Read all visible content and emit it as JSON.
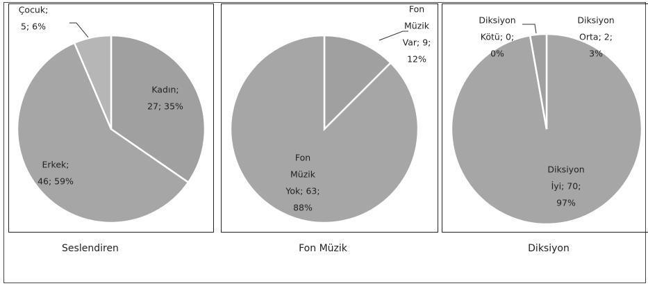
{
  "chart_data": [
    {
      "type": "pie",
      "title": "Seslendiren",
      "values": [
        27,
        46,
        5
      ],
      "colors": [
        "#a0a0a0",
        "#a6a6a6",
        "#b6b6b6"
      ],
      "value_labels": [
        [
          "Kadın;",
          "27; 35%"
        ],
        [
          "Erkek;",
          "46; 59%"
        ],
        [
          "Çocuk;",
          "5; 6%"
        ]
      ]
    },
    {
      "type": "pie",
      "title": "Fon Müzik",
      "values": [
        9,
        63
      ],
      "colors": [
        "#a0a0a0",
        "#a6a6a6"
      ],
      "value_labels": [
        [
          "Fon",
          "Müzik",
          "Var; 9;",
          "12%"
        ],
        [
          "Fon",
          "Müzik",
          "Yok; 63;",
          "88%"
        ]
      ]
    },
    {
      "type": "pie",
      "title": "Diksiyon",
      "values": [
        70,
        0,
        2
      ],
      "colors": [
        "#a6a6a6",
        "#9a9a9a",
        "#a0a0a0"
      ],
      "value_labels": [
        [
          "Diksiyon",
          "İyi; 70;",
          "97%"
        ],
        [
          "Diksiyon",
          "Kötü; 0;",
          "0%"
        ],
        [
          "Diksiyon",
          "Orta; 2;",
          "3%"
        ]
      ]
    }
  ]
}
